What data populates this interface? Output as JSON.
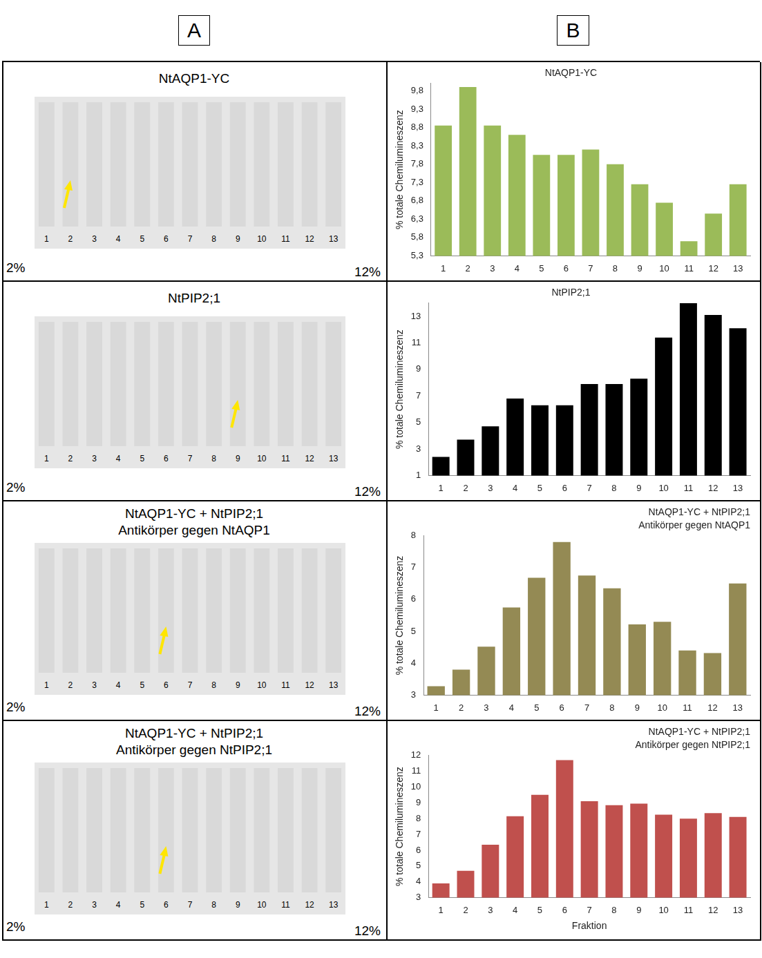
{
  "panel_labels": [
    "A",
    "B"
  ],
  "blots": [
    {
      "title": "NtAQP1-YC",
      "lanes": [
        "1",
        "2",
        "3",
        "4",
        "5",
        "6",
        "7",
        "8",
        "9",
        "10",
        "11",
        "12",
        "13"
      ],
      "gradient": [
        "2%",
        "12%"
      ],
      "arrow_lane": 2
    },
    {
      "title": "NtPIP2;1",
      "lanes": [
        "1",
        "2",
        "3",
        "4",
        "5",
        "6",
        "7",
        "8",
        "9",
        "10",
        "11",
        "12",
        "13"
      ],
      "gradient": [
        "2%",
        "12%"
      ],
      "arrow_lane": 9
    },
    {
      "title": "NtAQP1-YC + NtPIP2;1",
      "subtitle": "Antikörper gegen NtAQP1",
      "lanes": [
        "1",
        "2",
        "3",
        "4",
        "5",
        "6",
        "7",
        "8",
        "9",
        "10",
        "11",
        "12",
        "13"
      ],
      "gradient": [
        "2%",
        "12%"
      ],
      "arrow_lane": 6
    },
    {
      "title": "NtAQP1-YC + NtPIP2;1",
      "subtitle": "Antikörper gegen NtPIP2;1",
      "lanes": [
        "1",
        "2",
        "3",
        "4",
        "5",
        "6",
        "7",
        "8",
        "9",
        "10",
        "11",
        "12",
        "13"
      ],
      "gradient": [
        "2%",
        "12%"
      ],
      "arrow_lane": 6
    }
  ],
  "chart_data": [
    {
      "type": "bar",
      "title": "NtAQP1-YC",
      "y_label": "% totale Chemilumineszenz",
      "categories": [
        "1",
        "2",
        "3",
        "4",
        "5",
        "6",
        "7",
        "8",
        "9",
        "10",
        "11",
        "12",
        "13"
      ],
      "values": [
        8.85,
        9.9,
        8.85,
        8.6,
        8.05,
        8.05,
        8.2,
        7.8,
        7.25,
        6.75,
        5.7,
        6.45,
        7.25
      ],
      "color": "#9bbb59",
      "ylim": [
        5.3,
        10.0
      ],
      "yticks": [
        {
          "value": 5.3,
          "label": "5,3"
        },
        {
          "value": 5.8,
          "label": "5,8"
        },
        {
          "value": 6.3,
          "label": "6,3"
        },
        {
          "value": 6.8,
          "label": "6,8"
        },
        {
          "value": 7.3,
          "label": "7,3"
        },
        {
          "value": 7.8,
          "label": "7,8"
        },
        {
          "value": 8.3,
          "label": "8,3"
        },
        {
          "value": 8.8,
          "label": "8,8"
        },
        {
          "value": 9.3,
          "label": "9,3"
        },
        {
          "value": 9.8,
          "label": "9,8"
        }
      ],
      "grid": false
    },
    {
      "type": "bar",
      "title": "NtPIP2;1",
      "y_label": "% totale Chemilumineszenz",
      "categories": [
        "1",
        "2",
        "3",
        "4",
        "5",
        "6",
        "7",
        "8",
        "9",
        "10",
        "11",
        "12",
        "13"
      ],
      "values": [
        2.4,
        3.7,
        4.7,
        6.8,
        6.3,
        6.3,
        7.9,
        7.9,
        8.3,
        11.4,
        14.0,
        13.1,
        12.1
      ],
      "color": "#000000",
      "ylim": [
        1,
        14
      ],
      "yticks": [
        1,
        3,
        5,
        7,
        9,
        11,
        13
      ],
      "grid": false
    },
    {
      "type": "bar",
      "title": "NtAQP1-YC + NtPIP2;1",
      "subtitle": "Antikörper gegen NtAQP1",
      "y_label": "% totale Chemilumineszenz",
      "categories": [
        "1",
        "2",
        "3",
        "4",
        "5",
        "6",
        "7",
        "8",
        "9",
        "10",
        "11",
        "12",
        "13"
      ],
      "values": [
        3.28,
        3.8,
        4.52,
        5.75,
        6.68,
        7.8,
        6.75,
        6.35,
        5.22,
        5.3,
        4.4,
        4.32,
        6.5
      ],
      "color": "#948a54",
      "ylim": [
        3,
        8
      ],
      "yticks": [
        3,
        4,
        5,
        6,
        7,
        8
      ],
      "grid": false
    },
    {
      "type": "bar",
      "title": "NtAQP1-YC + NtPIP2;1",
      "subtitle": "Antikörper gegen NtPIP2;1",
      "y_label": "% totale Chemilumineszenz",
      "x_label": "Fraktion",
      "categories": [
        "1",
        "2",
        "3",
        "4",
        "5",
        "6",
        "7",
        "8",
        "9",
        "10",
        "11",
        "12",
        "13"
      ],
      "values": [
        3.9,
        4.7,
        6.35,
        8.15,
        9.5,
        11.7,
        9.1,
        8.85,
        8.95,
        8.25,
        8.0,
        8.35,
        8.1
      ],
      "color": "#c0504d",
      "ylim": [
        3,
        12
      ],
      "yticks": [
        3,
        4,
        5,
        6,
        7,
        8,
        9,
        10,
        11,
        12
      ],
      "grid": false
    }
  ]
}
